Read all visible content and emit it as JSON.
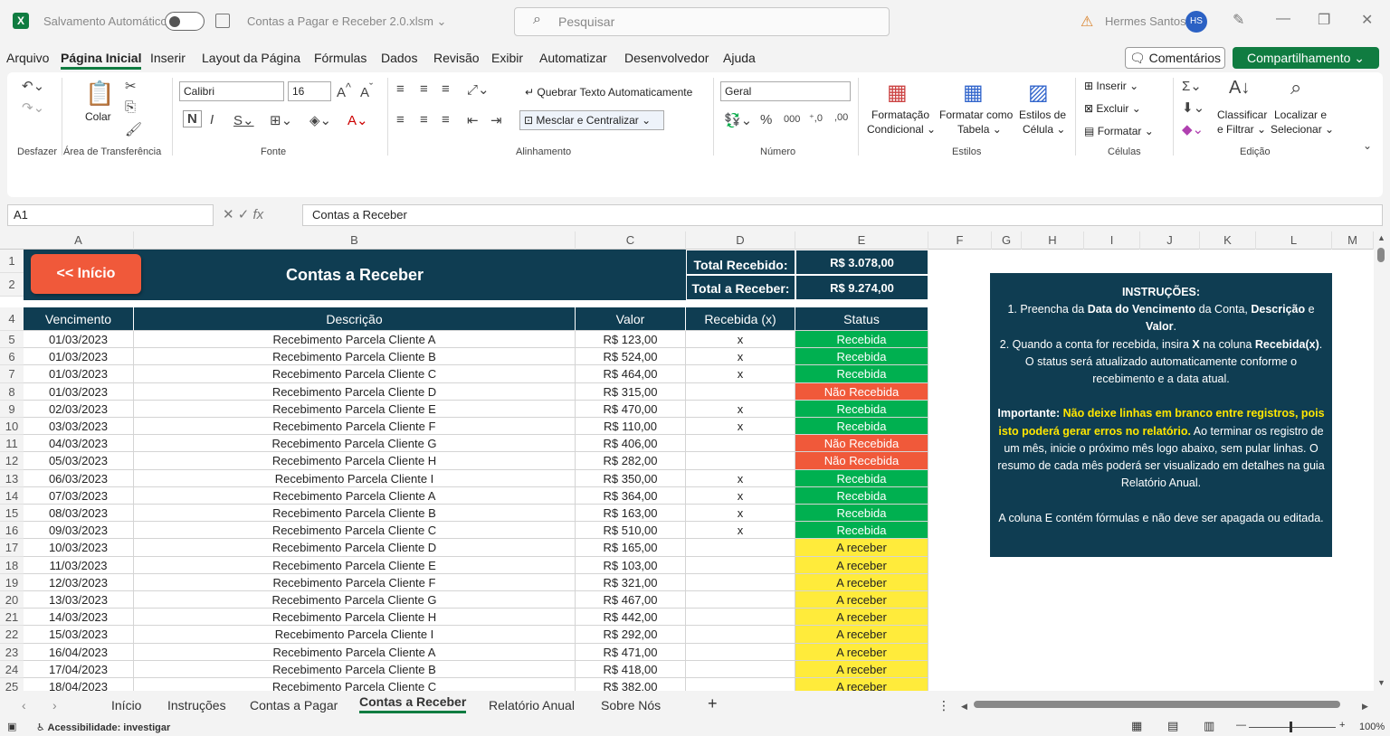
{
  "titlebar": {
    "autosave_label": "Salvamento Automático",
    "filename": "Contas a Pagar e Receber 2.0.xlsm ⌄",
    "search_placeholder": "Pesquisar",
    "user_name": "Hermes Santos",
    "user_initials": "HS"
  },
  "menu": [
    "Arquivo",
    "Página Inicial",
    "Inserir",
    "Layout da Página",
    "Fórmulas",
    "Dados",
    "Revisão",
    "Exibir",
    "Automatizar",
    "Desenvolvedor",
    "Ajuda"
  ],
  "buttons": {
    "comments": "Comentários",
    "share": "Compartilhamento ⌄"
  },
  "ribbon": {
    "paste_label": "Colar",
    "font_name": "Calibri",
    "font_size": "16",
    "wrap_text": "Quebrar Texto Automaticamente",
    "merge_center": "Mesclar e Centralizar",
    "number_format": "Geral",
    "cond_format": "Formatação",
    "cond_format2": "Condicional ⌄",
    "format_table": "Formatar como",
    "format_table2": "Tabela ⌄",
    "cell_styles": "Estilos de",
    "cell_styles2": "Célula ⌄",
    "insert": "Inserir",
    "delete": "Excluir",
    "format": "Formatar",
    "sort_filter": "Classificar",
    "sort_filter2": "e Filtrar ⌄",
    "find_select": "Localizar e",
    "find_select2": "Selecionar ⌄",
    "groups": [
      "Desfazer",
      "Área de Transferência",
      "Fonte",
      "Alinhamento",
      "Número",
      "Estilos",
      "Células",
      "Edição"
    ]
  },
  "formula": {
    "name_box": "A1",
    "content": "Contas a Receber"
  },
  "columns": [
    "A",
    "B",
    "C",
    "D",
    "E",
    "F",
    "G",
    "H",
    "I",
    "J",
    "K",
    "L",
    "M"
  ],
  "sheet": {
    "back_button": "<< Início",
    "title": "Contas a Receber",
    "total_received_label": "Total Recebido:",
    "total_received_value": "R$ 3.078,00",
    "total_receivable_label": "Total a Receber:",
    "total_receivable_value": "R$ 9.274,00",
    "headers": [
      "Vencimento",
      "Descrição",
      "Valor",
      "Recebida (x)",
      "Status"
    ],
    "row_numbers": [
      "1",
      "2",
      "4",
      "5",
      "6",
      "7",
      "8",
      "9",
      "10",
      "11",
      "12",
      "13",
      "14",
      "15",
      "16",
      "17",
      "18",
      "19",
      "20",
      "21",
      "22",
      "23",
      "24",
      "25"
    ],
    "rows": [
      {
        "date": "01/03/2023",
        "desc": "Recebimento Parcela Cliente A",
        "value": "R$ 123,00",
        "x": "x",
        "status": "Recebida"
      },
      {
        "date": "01/03/2023",
        "desc": "Recebimento Parcela Cliente B",
        "value": "R$ 524,00",
        "x": "x",
        "status": "Recebida"
      },
      {
        "date": "01/03/2023",
        "desc": "Recebimento Parcela Cliente C",
        "value": "R$ 464,00",
        "x": "x",
        "status": "Recebida"
      },
      {
        "date": "01/03/2023",
        "desc": "Recebimento Parcela Cliente D",
        "value": "R$ 315,00",
        "x": "",
        "status": "Não Recebida"
      },
      {
        "date": "02/03/2023",
        "desc": "Recebimento Parcela Cliente E",
        "value": "R$ 470,00",
        "x": "x",
        "status": "Recebida"
      },
      {
        "date": "03/03/2023",
        "desc": "Recebimento Parcela Cliente F",
        "value": "R$ 110,00",
        "x": "x",
        "status": "Recebida"
      },
      {
        "date": "04/03/2023",
        "desc": "Recebimento Parcela Cliente G",
        "value": "R$ 406,00",
        "x": "",
        "status": "Não Recebida"
      },
      {
        "date": "05/03/2023",
        "desc": "Recebimento Parcela Cliente H",
        "value": "R$ 282,00",
        "x": "",
        "status": "Não Recebida"
      },
      {
        "date": "06/03/2023",
        "desc": "Recebimento Parcela Cliente I",
        "value": "R$ 350,00",
        "x": "x",
        "status": "Recebida"
      },
      {
        "date": "07/03/2023",
        "desc": "Recebimento Parcela Cliente A",
        "value": "R$ 364,00",
        "x": "x",
        "status": "Recebida"
      },
      {
        "date": "08/03/2023",
        "desc": "Recebimento Parcela Cliente B",
        "value": "R$ 163,00",
        "x": "x",
        "status": "Recebida"
      },
      {
        "date": "09/03/2023",
        "desc": "Recebimento Parcela Cliente C",
        "value": "R$ 510,00",
        "x": "x",
        "status": "Recebida"
      },
      {
        "date": "10/03/2023",
        "desc": "Recebimento Parcela Cliente D",
        "value": "R$ 165,00",
        "x": "",
        "status": "A receber"
      },
      {
        "date": "11/03/2023",
        "desc": "Recebimento Parcela Cliente E",
        "value": "R$ 103,00",
        "x": "",
        "status": "A receber"
      },
      {
        "date": "12/03/2023",
        "desc": "Recebimento Parcela Cliente F",
        "value": "R$ 321,00",
        "x": "",
        "status": "A receber"
      },
      {
        "date": "13/03/2023",
        "desc": "Recebimento Parcela Cliente G",
        "value": "R$ 467,00",
        "x": "",
        "status": "A receber"
      },
      {
        "date": "14/03/2023",
        "desc": "Recebimento Parcela Cliente H",
        "value": "R$ 442,00",
        "x": "",
        "status": "A receber"
      },
      {
        "date": "15/03/2023",
        "desc": "Recebimento Parcela Cliente I",
        "value": "R$ 292,00",
        "x": "",
        "status": "A receber"
      },
      {
        "date": "16/04/2023",
        "desc": "Recebimento Parcela Cliente A",
        "value": "R$ 471,00",
        "x": "",
        "status": "A receber"
      },
      {
        "date": "17/04/2023",
        "desc": "Recebimento Parcela Cliente B",
        "value": "R$ 418,00",
        "x": "",
        "status": "A receber"
      },
      {
        "date": "18/04/2023",
        "desc": "Recebimento Parcela Cliente C",
        "value": "R$ 382,00",
        "x": "",
        "status": "A receber"
      }
    ],
    "status_colors": {
      "Recebida": "#00b050",
      "Não Recebida": "#f0593a",
      "A receber": "#ffeb3b"
    },
    "instructions": {
      "title": "INSTRUÇÕES:",
      "p1_a": "1. Preencha da ",
      "p1_b": "Data do Vencimento",
      "p1_c": " da Conta, ",
      "p1_d": "Descrição",
      "p1_e": " e ",
      "p1_f": "Valor",
      "p1_g": ".",
      "p2_a": "2. Quando a conta for recebida, insira ",
      "p2_b": "X",
      "p2_c": " na coluna ",
      "p2_d": "Recebida(x)",
      "p2_e": ". O status será atualizado automaticamente conforme o recebimento e a data atual.",
      "imp_a": "Importante: ",
      "imp_b": "Não deixe linhas em branco entre registros, pois isto poderá gerar erros no relatório.",
      "imp_c": " Ao terminar os registro de um mês, inicie o próximo mês logo abaixo, sem pular linhas. O resumo de cada mês poderá ser visualizado em detalhes na guia Relatório Anual.",
      "p3": "A coluna E contém fórmulas e não deve ser apagada ou editada."
    }
  },
  "tabs": [
    "Início",
    "Instruções",
    "Contas a Pagar",
    "Contas a Receber",
    "Relatório Anual",
    "Sobre Nós"
  ],
  "active_tab": "Contas a Receber",
  "status": {
    "accessibility": "Acessibilidade: investigar",
    "zoom": "100%"
  }
}
